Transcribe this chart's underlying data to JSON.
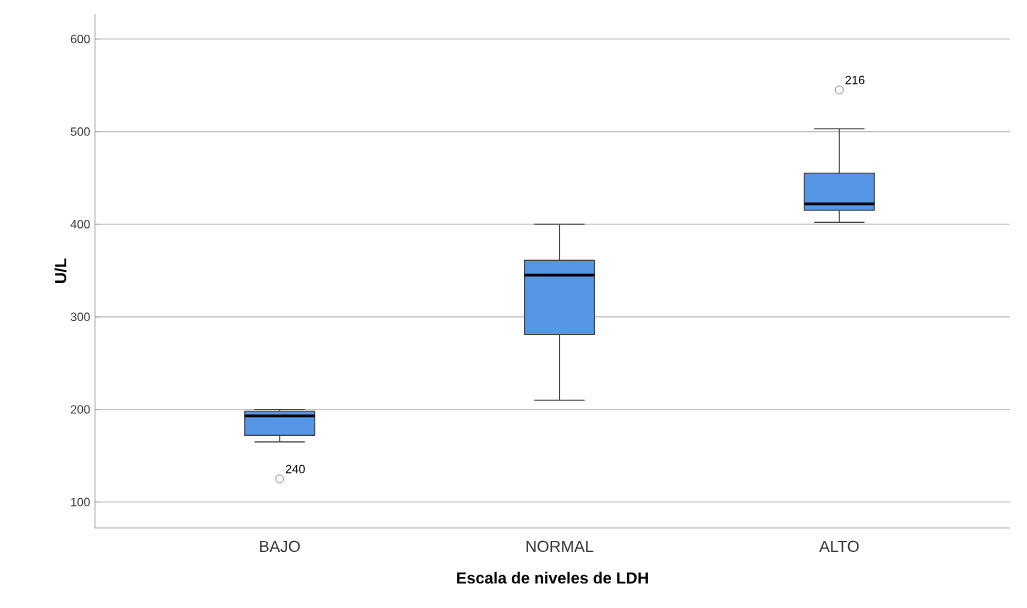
{
  "chart_data": {
    "type": "box",
    "xlabel": "Escala de niveles de LDH",
    "ylabel": "U/L",
    "categories": [
      "BAJO",
      "NORMAL",
      "ALTO"
    ],
    "color": "#5596e6",
    "boxes": [
      {
        "low": 165,
        "q1": 172,
        "median": 193,
        "q3": 198,
        "high": 200,
        "outliers": [
          125
        ]
      },
      {
        "low": 210,
        "q1": 281,
        "median": 345,
        "q3": 361,
        "high": 400
      },
      {
        "low": 402,
        "q1": 415,
        "median": 422,
        "q3": 455,
        "high": 503,
        "outliers": [
          545
        ]
      }
    ],
    "ylim": [
      72,
      627
    ],
    "yticks": [
      100,
      200,
      300,
      400,
      500,
      600
    ],
    "grid": "y",
    "annotations": [
      "240",
      "216"
    ]
  }
}
